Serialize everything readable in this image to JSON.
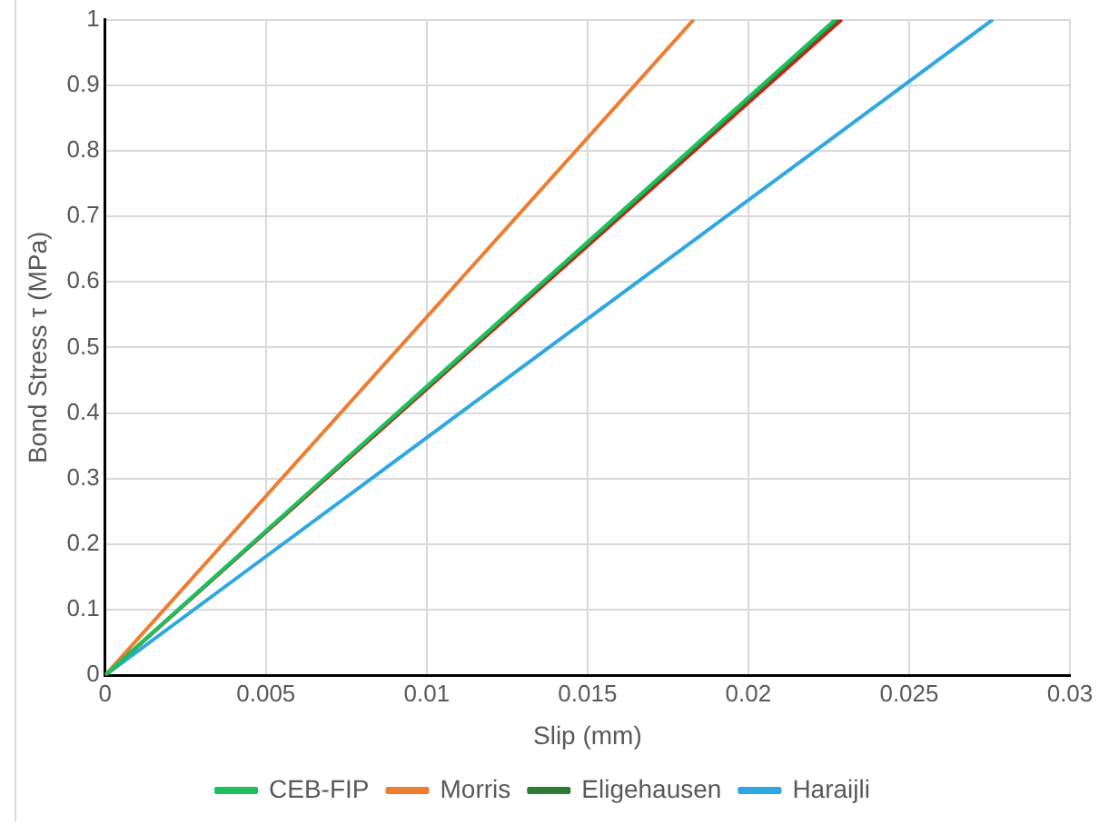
{
  "chart_data": {
    "type": "line",
    "xlabel": "Slip (mm)",
    "ylabel": "Bond Stress τ (MPa)",
    "xlim": [
      0,
      0.03
    ],
    "xticks": [
      0,
      0.005,
      0.01,
      0.015,
      0.02,
      0.025,
      0.03
    ],
    "ylim": [
      0,
      1
    ],
    "yticks": [
      0,
      0.1,
      0.2,
      0.3,
      0.4,
      0.5,
      0.6,
      0.7,
      0.8,
      0.9,
      1
    ],
    "grid": true,
    "legend": "bottom",
    "marker": "none",
    "line_style": "solid",
    "series": [
      {
        "name": "CEB-FIP",
        "color": "#1fbf5f",
        "x": [
          0,
          0.0227
        ],
        "values": [
          0,
          1
        ]
      },
      {
        "name": "Morris",
        "color": "#ed7d31",
        "x": [
          0,
          0.0183
        ],
        "values": [
          0,
          1
        ]
      },
      {
        "name": "Eligehausen",
        "color": "#2e7d32",
        "x": [
          0,
          0.0228
        ],
        "values": [
          0,
          1
        ]
      },
      {
        "name": "Haraijli",
        "color": "#2ea8e0",
        "x": [
          0,
          0.0276
        ],
        "values": [
          0,
          1
        ]
      },
      {
        "color": "#ff0000",
        "x": [
          0,
          0.0229
        ],
        "values": [
          0,
          1
        ]
      }
    ]
  }
}
